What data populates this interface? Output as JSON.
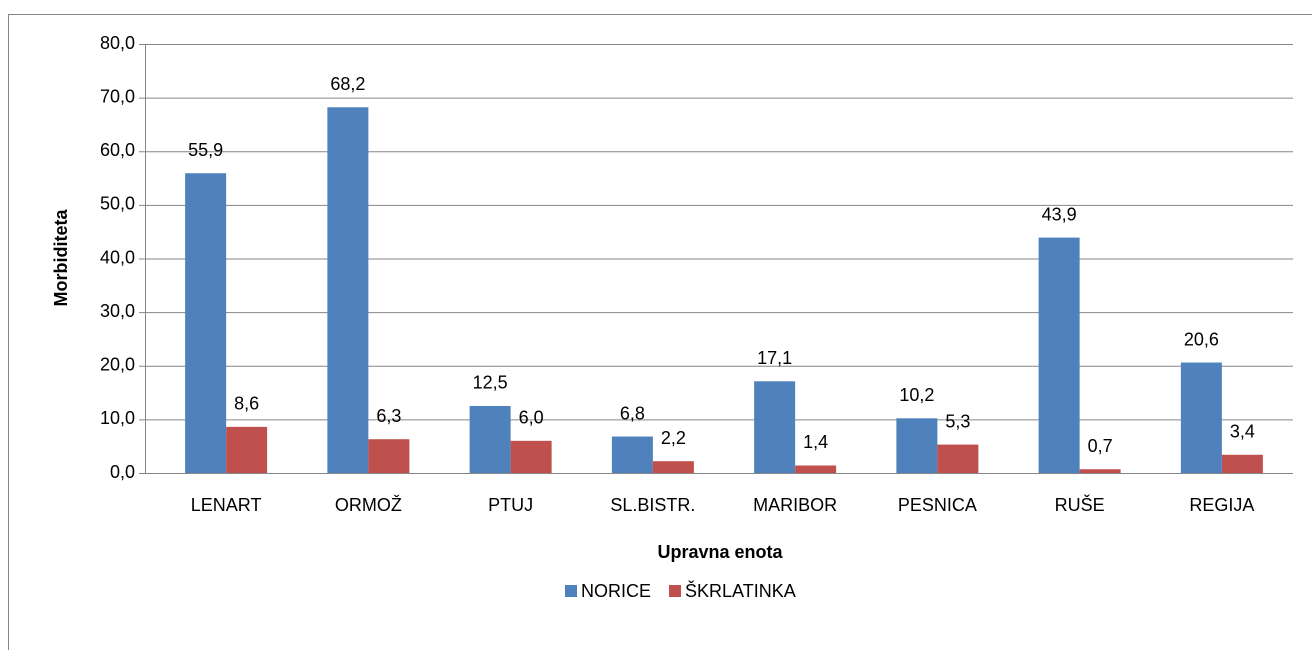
{
  "chart_data": {
    "type": "bar",
    "x_label": "Upravna enota",
    "y_label": "Morbiditeta",
    "categories": [
      "LENART",
      "ORMOŽ",
      "PTUJ",
      "SL.BISTR.",
      "MARIBOR",
      "PESNICA",
      "RUŠE",
      "REGIJA"
    ],
    "series": [
      {
        "name": "NORICE",
        "color": "#4f81bd",
        "values": [
          55.9,
          68.2,
          12.5,
          6.8,
          17.1,
          10.2,
          43.9,
          20.6
        ],
        "value_labels": [
          "55,9",
          "68,2",
          "12,5",
          "6,8",
          "17,1",
          "10,2",
          "43,9",
          "20,6"
        ]
      },
      {
        "name": "ŠKRLATINKA",
        "color": "#c0504d",
        "values": [
          8.6,
          6.3,
          6.0,
          2.2,
          1.4,
          5.3,
          0.7,
          3.4
        ],
        "value_labels": [
          "8,6",
          "6,3",
          "6,0",
          "2,2",
          "1,4",
          "5,3",
          "0,7",
          "3,4"
        ]
      }
    ],
    "ylim": [
      0,
      80
    ],
    "yticks": [
      {
        "value": 0,
        "label": "0,0"
      },
      {
        "value": 10,
        "label": "10,0"
      },
      {
        "value": 20,
        "label": "20,0"
      },
      {
        "value": 30,
        "label": "30,0"
      },
      {
        "value": 40,
        "label": "40,0"
      },
      {
        "value": 50,
        "label": "50,0"
      },
      {
        "value": 60,
        "label": "60,0"
      },
      {
        "value": 70,
        "label": "70,0"
      },
      {
        "value": 80,
        "label": "80,0"
      }
    ],
    "grid": true,
    "legend": "bottom"
  }
}
